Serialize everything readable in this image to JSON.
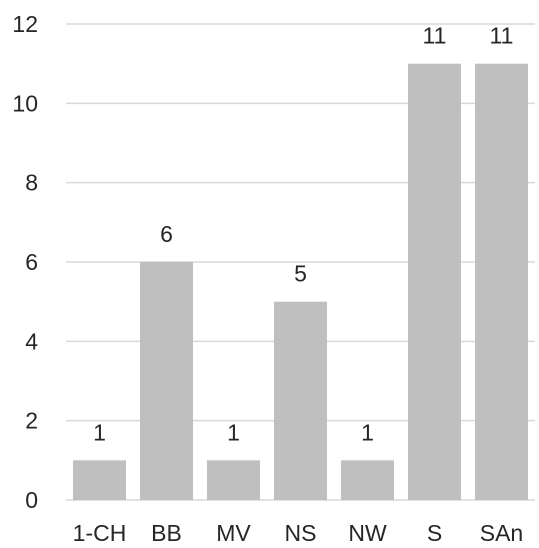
{
  "chart_data": {
    "type": "bar",
    "categories": [
      "1-CH",
      "BB",
      "MV",
      "NS",
      "NW",
      "S",
      "SAn"
    ],
    "values": [
      1,
      6,
      1,
      5,
      1,
      11,
      11
    ],
    "data_labels": [
      "1",
      "6",
      "1",
      "5",
      "1",
      "11",
      "11"
    ],
    "title": "",
    "xlabel": "",
    "ylabel": "",
    "ylim": [
      0,
      12
    ],
    "yticks": [
      0,
      2,
      4,
      6,
      8,
      10,
      12
    ],
    "ytick_labels": [
      "0",
      "2",
      "4",
      "6",
      "8",
      "10",
      "12"
    ],
    "grid": true,
    "legend": "none",
    "colors": {
      "bar": "#bfbfbf",
      "grid": "#d9d9d9",
      "text": "#262626"
    }
  }
}
